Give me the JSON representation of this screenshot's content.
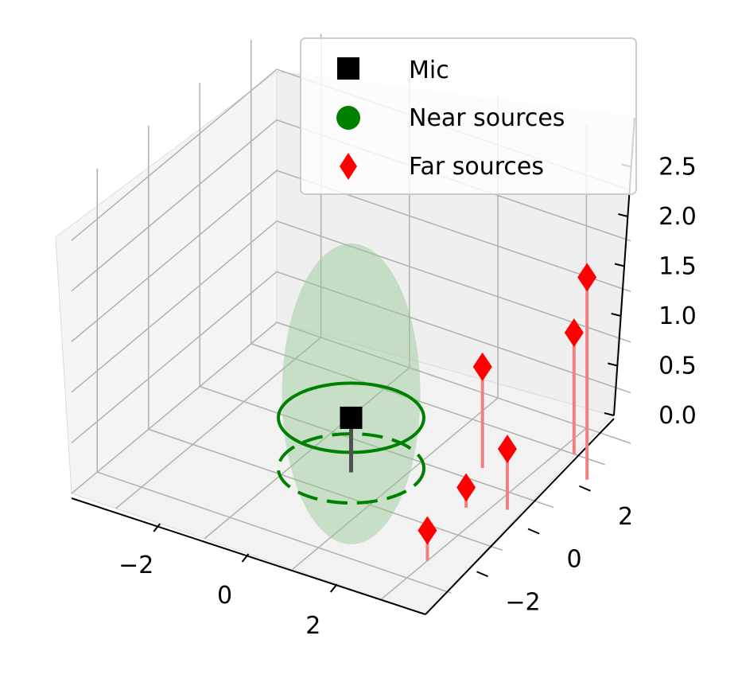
{
  "chart_data": {
    "type": "scatter",
    "projection": "3d",
    "title": "",
    "xlabel": "",
    "ylabel": "",
    "zlabel": "",
    "xlim": [
      -4,
      4
    ],
    "ylim": [
      -4,
      4
    ],
    "zlim": [
      0,
      2.5
    ],
    "x_ticks": [
      "−2",
      "0",
      "2"
    ],
    "y_ticks": [
      "−2",
      "0",
      "2"
    ],
    "z_ticks": [
      "0.0",
      "0.5",
      "1.0",
      "1.5",
      "2.0",
      "2.5"
    ],
    "grid": true,
    "legend_position": "top-right",
    "series": [
      {
        "name": "Mic",
        "marker": "square",
        "color": "#000000",
        "points": [
          {
            "x": 0,
            "y": 0,
            "z": 0.5
          }
        ]
      },
      {
        "name": "Near sources",
        "marker": "circle",
        "color": "#008000",
        "rings": [
          {
            "center": [
              0,
              0,
              0.5
            ],
            "radius": 1.5,
            "style": "solid"
          },
          {
            "center": [
              0,
              0,
              0.0
            ],
            "radius": 1.5,
            "style": "dashed"
          }
        ],
        "ellipsoid": {
          "center": [
            0,
            0,
            0.5
          ],
          "radii": [
            1.5,
            1.5,
            1.5
          ],
          "color": "#90c890"
        }
      },
      {
        "name": "Far sources",
        "marker": "diamond",
        "color": "#ff0000",
        "stem_color": "#f08080",
        "points": [
          {
            "x": 3.0,
            "y": -2.2,
            "z": 0.3
          },
          {
            "x": 2.6,
            "y": 0.0,
            "z": 0.2
          },
          {
            "x": 3.3,
            "y": 0.4,
            "z": 0.6
          },
          {
            "x": 4.0,
            "y": 2.3,
            "z": 2.0
          },
          {
            "x": 2.1,
            "y": 1.5,
            "z": 1.0
          },
          {
            "x": 3.3,
            "y": 3.0,
            "z": 1.2
          }
        ]
      }
    ]
  }
}
